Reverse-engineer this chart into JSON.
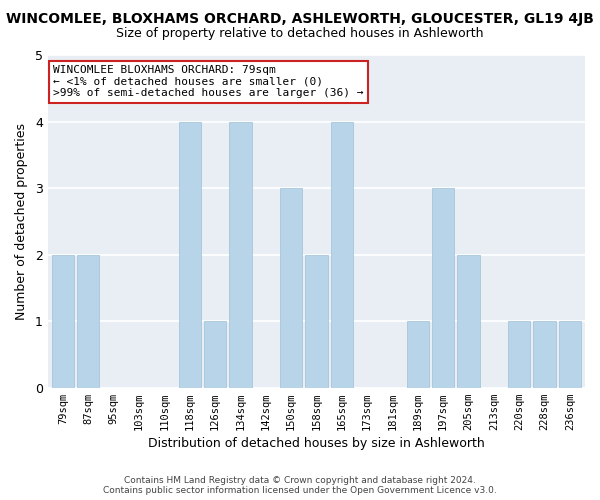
{
  "title": "WINCOMLEE, BLOXHAMS ORCHARD, ASHLEWORTH, GLOUCESTER, GL19 4JB",
  "subtitle": "Size of property relative to detached houses in Ashleworth",
  "xlabel": "Distribution of detached houses by size in Ashleworth",
  "ylabel": "Number of detached properties",
  "categories": [
    "79sqm",
    "87sqm",
    "95sqm",
    "103sqm",
    "110sqm",
    "118sqm",
    "126sqm",
    "134sqm",
    "142sqm",
    "150sqm",
    "158sqm",
    "165sqm",
    "173sqm",
    "181sqm",
    "189sqm",
    "197sqm",
    "205sqm",
    "213sqm",
    "220sqm",
    "228sqm",
    "236sqm"
  ],
  "values": [
    2,
    2,
    0,
    0,
    0,
    4,
    1,
    4,
    0,
    3,
    2,
    4,
    0,
    0,
    1,
    3,
    2,
    0,
    1,
    1,
    1
  ],
  "bar_color": "#b8d4e8",
  "highlight_color": "#b8d4e8",
  "highlight_index": 0,
  "ylim": [
    0,
    5
  ],
  "yticks": [
    0,
    1,
    2,
    3,
    4,
    5
  ],
  "annotation_title": "WINCOMLEE BLOXHAMS ORCHARD: 79sqm",
  "annotation_line1": "← <1% of detached houses are smaller (0)",
  "annotation_line2": ">99% of semi-detached houses are larger (36) →",
  "annotation_box_facecolor": "#ffffff",
  "annotation_border_color": "#cc2222",
  "footer_line1": "Contains HM Land Registry data © Crown copyright and database right 2024.",
  "footer_line2": "Contains public sector information licensed under the Open Government Licence v3.0.",
  "background_color": "#ffffff",
  "plot_bg_color": "#e8eef4",
  "grid_color": "#ffffff",
  "title_fontsize": 10,
  "subtitle_fontsize": 9,
  "ylabel_fontsize": 9,
  "xlabel_fontsize": 9
}
